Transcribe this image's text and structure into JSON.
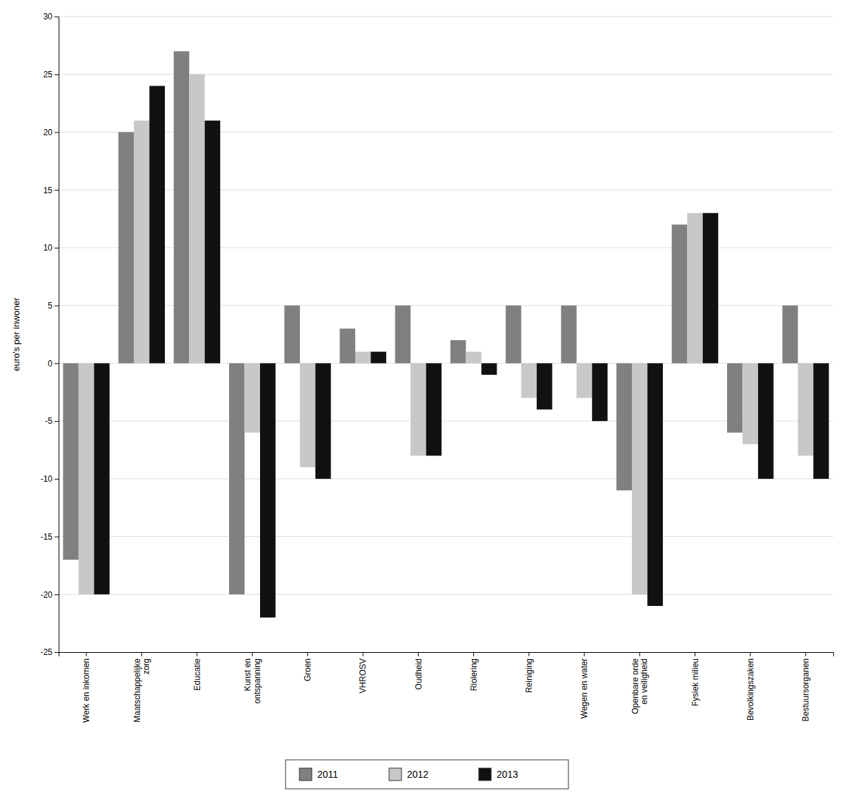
{
  "chart_data": {
    "type": "bar",
    "ylabel": "euro's per inwoner",
    "categories": [
      "Werk en inkomen",
      "Maatschappelijke\nzorg",
      "Educatie",
      "Kunst en\nontspanning",
      "Groen",
      "VHROSV",
      "Oudheid",
      "Riolering",
      "Reiniging",
      "Wegen en water",
      "Openbare orde\nen veiligheid",
      "Fysiek milieu",
      "Bevolkingszaken",
      "Bestuursorganen"
    ],
    "series": [
      {
        "name": "2011",
        "color": "#808080",
        "values": [
          -17,
          20,
          27,
          -20,
          5,
          3,
          5,
          2,
          5,
          5,
          -11,
          12,
          -6,
          5
        ]
      },
      {
        "name": "2012",
        "color": "#c8c8c8",
        "values": [
          -20,
          21,
          25,
          -6,
          -9,
          1,
          -8,
          1,
          -3,
          -3,
          -20,
          13,
          -7,
          -8
        ]
      },
      {
        "name": "2013",
        "color": "#111111",
        "values": [
          -20,
          24,
          21,
          -22,
          -10,
          1,
          -8,
          -1,
          -4,
          -5,
          -21,
          13,
          -10,
          -10
        ]
      }
    ],
    "ylim": [
      -25,
      30
    ],
    "yticks": [
      -25,
      -20,
      -15,
      -10,
      -5,
      0,
      5,
      10,
      15,
      20,
      25,
      30
    ],
    "grid": true,
    "legend": "bottom"
  }
}
